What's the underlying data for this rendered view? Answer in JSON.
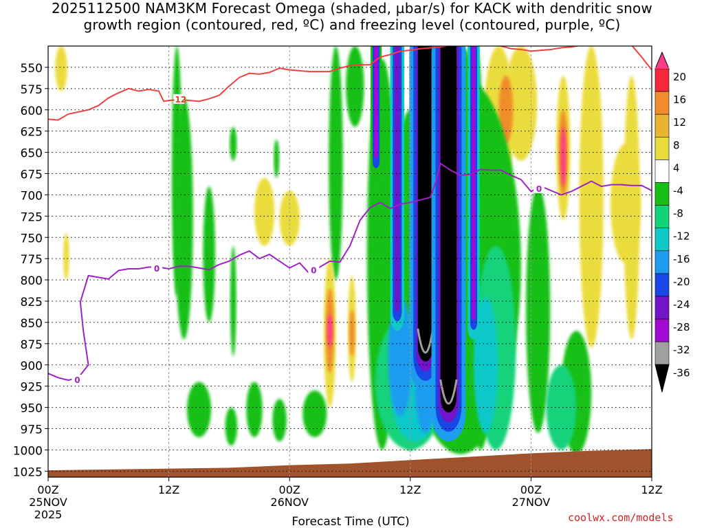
{
  "chart_data": {
    "type": "heatmap",
    "title_line1": "2025112500 NAM3KM Forecast Omega (shaded, µbar/s) for KACK with dendritic snow",
    "title_line2": "growth region (contoured, red, ºC) and freezing level (contoured, purple, ºC)",
    "xlabel": "Forecast Time (UTC)",
    "x_ticks": [
      {
        "label": "00Z",
        "date": "25NOV",
        "year": "2025",
        "hour": 0
      },
      {
        "label": "12Z",
        "date": "",
        "year": "",
        "hour": 12
      },
      {
        "label": "00Z",
        "date": "26NOV",
        "year": "",
        "hour": 24
      },
      {
        "label": "12Z",
        "date": "",
        "year": "",
        "hour": 36
      },
      {
        "label": "00Z",
        "date": "27NOV",
        "year": "",
        "hour": 48
      },
      {
        "label": "12Z",
        "date": "",
        "year": "",
        "hour": 60
      }
    ],
    "x_range_hours": [
      0,
      60
    ],
    "y_levels": [
      550,
      575,
      600,
      625,
      650,
      675,
      700,
      725,
      750,
      775,
      800,
      825,
      850,
      875,
      900,
      925,
      950,
      975,
      1000,
      1025
    ],
    "y_range_hpa": [
      525,
      1032
    ],
    "colorbar": {
      "labels": [
        "20",
        "16",
        "12",
        "8",
        "4",
        "-4",
        "-8",
        "-12",
        "-16",
        "-20",
        "-24",
        "-28",
        "-32",
        "-36"
      ],
      "colors": [
        "#ff3c86",
        "#f5283c",
        "#f08c2c",
        "#e8b432",
        "#ebdc3c",
        "#ffffff",
        "#16c016",
        "#14d27a",
        "#10c8c8",
        "#1e9cf0",
        "#1a46e6",
        "#7214c8",
        "#a00ad2",
        "#a0a0a0",
        "#000000"
      ]
    },
    "contour_labels": {
      "dgz": "-12",
      "freezing": "0"
    },
    "dgz_line": [
      [
        0,
        611
      ],
      [
        1,
        612
      ],
      [
        2,
        605
      ],
      [
        4,
        600
      ],
      [
        5,
        595
      ],
      [
        6,
        586
      ],
      [
        7,
        580
      ],
      [
        8,
        575
      ],
      [
        9,
        578
      ],
      [
        10,
        576
      ],
      [
        11,
        578
      ],
      [
        11.5,
        590
      ],
      [
        12,
        589
      ],
      [
        13,
        588
      ],
      [
        14,
        589
      ],
      [
        15,
        590
      ],
      [
        16,
        587
      ],
      [
        17,
        583
      ],
      [
        18,
        572
      ],
      [
        19,
        562
      ],
      [
        20,
        557
      ],
      [
        21,
        558
      ],
      [
        22,
        556
      ],
      [
        23,
        551
      ],
      [
        24,
        553
      ],
      [
        25,
        554
      ],
      [
        26,
        555
      ],
      [
        27,
        555
      ],
      [
        28,
        555
      ],
      [
        29,
        551
      ],
      [
        30,
        548
      ],
      [
        31,
        547
      ],
      [
        32,
        547
      ],
      [
        33,
        538
      ],
      [
        34,
        535
      ],
      [
        35,
        531
      ],
      [
        36,
        530
      ],
      [
        37,
        528
      ],
      [
        38,
        527
      ],
      [
        39,
        526
      ],
      [
        40,
        524
      ],
      [
        41,
        525
      ],
      [
        42,
        524
      ],
      [
        43,
        523
      ],
      [
        44,
        523
      ],
      [
        45,
        525
      ],
      [
        46,
        528
      ],
      [
        47,
        529
      ],
      [
        48,
        531
      ],
      [
        49,
        530
      ],
      [
        50,
        529
      ],
      [
        51,
        527
      ],
      [
        52,
        526
      ],
      [
        53,
        524
      ],
      [
        54,
        522
      ],
      [
        55,
        521
      ],
      [
        56,
        520
      ],
      [
        57,
        522
      ],
      [
        58,
        524
      ],
      [
        59,
        538
      ],
      [
        60,
        553
      ]
    ],
    "freezing_line": [
      [
        0,
        910
      ],
      [
        1,
        915
      ],
      [
        2,
        918
      ],
      [
        3,
        915
      ],
      [
        4,
        900
      ],
      [
        3.5,
        860
      ],
      [
        3.2,
        826
      ],
      [
        4,
        795
      ],
      [
        5,
        797
      ],
      [
        6,
        799
      ],
      [
        7,
        789
      ],
      [
        8,
        787
      ],
      [
        9,
        787
      ],
      [
        10,
        785
      ],
      [
        11,
        785
      ],
      [
        12,
        787
      ],
      [
        13,
        784
      ],
      [
        14,
        784
      ],
      [
        15,
        786
      ],
      [
        16,
        788
      ],
      [
        17,
        782
      ],
      [
        18,
        778
      ],
      [
        19,
        771
      ],
      [
        20,
        766
      ],
      [
        21,
        775
      ],
      [
        22,
        770
      ],
      [
        23,
        778
      ],
      [
        24,
        786
      ],
      [
        25,
        780
      ],
      [
        26,
        793
      ],
      [
        27,
        785
      ],
      [
        28,
        778
      ],
      [
        29,
        779
      ],
      [
        30,
        760
      ],
      [
        31,
        730
      ],
      [
        32,
        715
      ],
      [
        33,
        709
      ],
      [
        34,
        716
      ],
      [
        35,
        711
      ],
      [
        36,
        709
      ],
      [
        37,
        706
      ],
      [
        38,
        703
      ],
      [
        38.5,
        686
      ],
      [
        39,
        663
      ],
      [
        40,
        671
      ],
      [
        41,
        677
      ],
      [
        42,
        676
      ],
      [
        43,
        670
      ],
      [
        44,
        671
      ],
      [
        45,
        671
      ],
      [
        46,
        677
      ],
      [
        47,
        682
      ],
      [
        48,
        696
      ],
      [
        49,
        690
      ],
      [
        50,
        695
      ],
      [
        51,
        700
      ],
      [
        52,
        696
      ],
      [
        53,
        690
      ],
      [
        54,
        684
      ],
      [
        55,
        690
      ],
      [
        56,
        688
      ],
      [
        57,
        688
      ],
      [
        58,
        689
      ],
      [
        59,
        689
      ],
      [
        60,
        695
      ]
    ]
  },
  "credit": "coolwx.com/models"
}
